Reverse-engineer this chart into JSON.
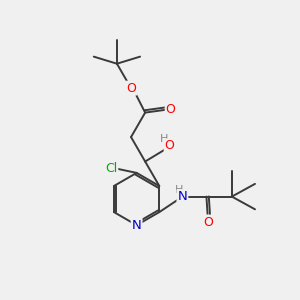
{
  "bg_color": "#f0f0f0",
  "bond_color": "#3a3a3a",
  "atom_colors": {
    "O": "#ff0000",
    "N": "#0000cc",
    "Cl": "#00aa00",
    "H": "#888888",
    "C": "#3a3a3a"
  },
  "figsize": [
    3.0,
    3.0
  ],
  "dpi": 100
}
